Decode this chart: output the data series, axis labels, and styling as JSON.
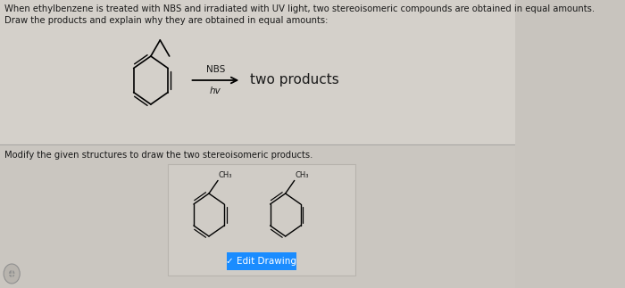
{
  "bg_color": "#c8c4be",
  "top_panel_color": "#d4d0ca",
  "bot_panel_color": "#cac6c0",
  "separator_color": "#aaa8a5",
  "text_color": "#1a1a1a",
  "text_top_line1": "When ethylbenzene is treated with NBS and irradiated with UV light, two stereoisomeric compounds are obtained in equal amounts.",
  "text_top_line2": "Draw the products and explain why they are obtained in equal amounts:",
  "text_bottom": "Modify the given structures to draw the two stereoisomeric products.",
  "nbs_label": "NBS",
  "hv_label": "hv",
  "two_products_label": "two products",
  "edit_button_text": "✓ Edit Drawing",
  "edit_button_color": "#1a8cff",
  "edit_button_text_color": "#ffffff",
  "font_size_main": 7.2,
  "font_size_arrow_label": 7.5,
  "font_size_products": 11,
  "font_size_ch3": 6.0,
  "watermark_color": "#ffffff",
  "watermark_alpha": 0.18,
  "struct_box_color": "#d0ccc6",
  "struct_box_edge": "#b8b4ae",
  "ch3_label": "CH₃"
}
